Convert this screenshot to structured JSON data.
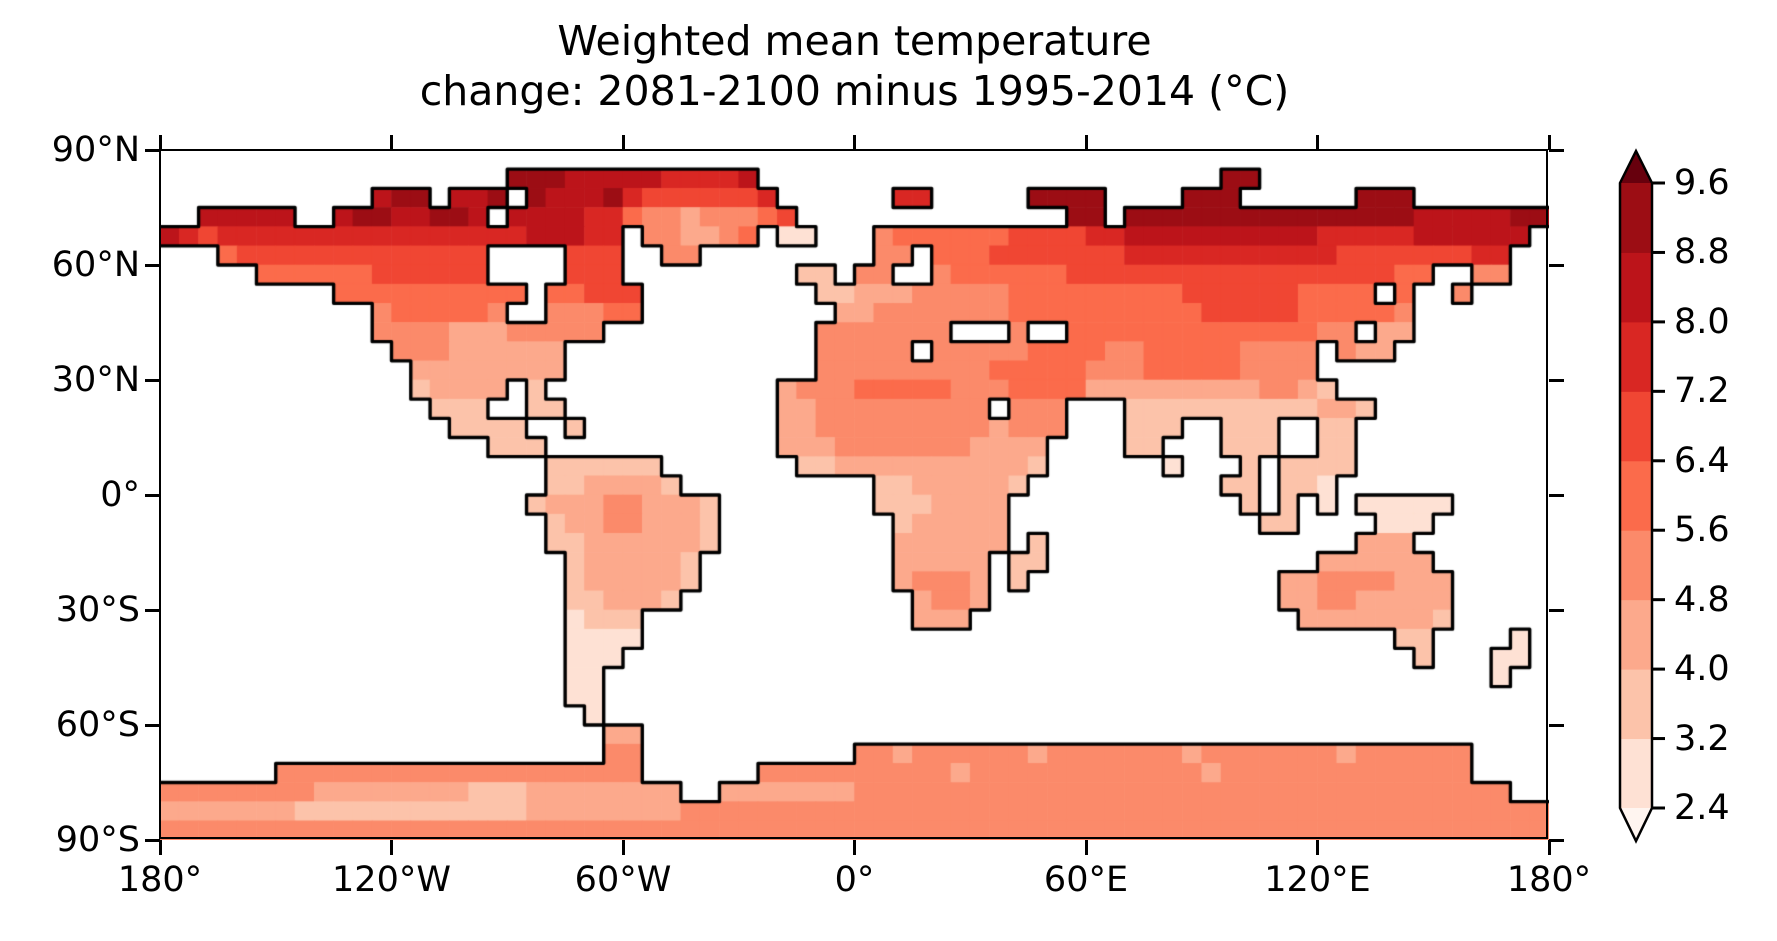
{
  "title": {
    "line1": "Weighted mean temperature",
    "line2": "change: 2081-2100 minus 1995-2014 (°C)"
  },
  "axes": {
    "x_ticks": [
      {
        "label": "180°",
        "lon": -180
      },
      {
        "label": "120°W",
        "lon": -120
      },
      {
        "label": "60°W",
        "lon": -60
      },
      {
        "label": "0°",
        "lon": 0
      },
      {
        "label": "60°E",
        "lon": 60
      },
      {
        "label": "120°E",
        "lon": 120
      },
      {
        "label": "180°",
        "lon": 180
      }
    ],
    "y_ticks": [
      {
        "label": "90°N",
        "lat": 90
      },
      {
        "label": "60°N",
        "lat": 60
      },
      {
        "label": "30°N",
        "lat": 30
      },
      {
        "label": "0°",
        "lat": 0
      },
      {
        "label": "30°S",
        "lat": -30
      },
      {
        "label": "60°S",
        "lat": -60
      },
      {
        "label": "90°S",
        "lat": -90
      }
    ]
  },
  "colorbar": {
    "tick_labels": [
      "9.6",
      "8.8",
      "8.0",
      "7.2",
      "6.4",
      "5.6",
      "4.8",
      "4.0",
      "3.2",
      "2.4"
    ],
    "boundaries": [
      2.4,
      3.2,
      4.0,
      4.8,
      5.6,
      6.4,
      7.2,
      8.0,
      8.8,
      9.6
    ],
    "segment_colors_low_to_high": [
      "#fee1d4",
      "#fcc3aa",
      "#fca98c",
      "#fb8a6a",
      "#fb6b4b",
      "#f04633",
      "#d92723",
      "#bc141a",
      "#9c0d14"
    ],
    "under_color": "#fff5f0",
    "over_color": "#67000d",
    "outline_color": "#000000",
    "extend": "both"
  },
  "chart_data": {
    "type": "heatmap",
    "title": "Weighted mean temperature change: 2081-2100 minus 1995-2014 (°C)",
    "units": "°C",
    "projection": "equirectangular (plate carree), world map, ocean masked white, coastlines black",
    "lon_range": [
      -180,
      180
    ],
    "lat_range": [
      -90,
      90
    ],
    "grid_cell_deg": 5,
    "value_bins_degC": [
      2.4,
      3.2,
      4.0,
      4.8,
      5.6,
      6.4,
      7.2,
      8.0,
      8.8,
      9.6
    ],
    "bin_char_meaning": {
      ".": "ocean / no data",
      "1": "2.4-3.2",
      "2": "3.2-4.0",
      "3": "4.0-4.8",
      "4": "4.8-5.6",
      "5": "5.6-6.4",
      "6": "6.4-7.2",
      "7": "7.2-8.0",
      "8": "8.0-8.8",
      "9": "8.8-9.6"
    },
    "palette": {
      "1": "#fee1d4",
      "2": "#fcc3aa",
      "3": "#fca98c",
      "4": "#fb8a6a",
      "5": "#fb6b4b",
      "6": "#f04633",
      "7": "#d92723",
      "8": "#bc141a",
      "9": "#9c0d14"
    },
    "pattern_summary": "Strong Arctic amplification (8-9.6+ over Arctic coasts and islands), 6-8 over subarctic Canada/Siberia, 4-6 mid-latitudes, 3-4.5 tropics, lightest (2.4-3.2) over Patagonia, New Zealand and New Guinea, 4-5.6 over Antarctica",
    "grid_rows": [
      "........................................................................",
      "..................9998888877778........................99..............",
      "...........899.889.9888976666667......77.....9999....999......999......",
      "..88888..89988998.888877544344456..............99.9999999999999998888899 99",
      "876777777777777777788877.443345.11...455555566667788888888887777788 8888",
      "...56666666666666....666..44.........44.5556666666777777777776666 66677",
      ".....555555666666....666.........22.44..4555555666666666666666 6655..44...",
      ".........5555555555.55666.........22333444445555555556666665555.5..4....",
      "...........4555554..44455..........334444444555555555566666555554.......",
      "...........444433344444...........44444 44...4..555555555555544.33.......",
      "............444333333.............44444.44444555544555554444.433........",
      ".............33333333.............4444444445555544455555444 4............",
      ".............23333.2............344455555444555533333333344 32...........",
      "..............222..22...........33444444444.444...2222222222332.........",
      "...............22 22..2..........3344444444434 44...222..222..22..........",
      ".................222............3334444444333 3....22...222..22..........",
      "....................222222.......223333333333 2......1...2.2222..........",
      "....................2233332..........22333332..........22.221..........",
      "...................2333443332........2223333............2.2.1.11111.....",
      "....................233443332.........233333.............22....111......",
      "....................223333332.........333333.2................333.......",
      ".....................2333332..........33333.22..............333333......",
      ".....................2333332..........34443.2.............334444333.....",
      ".....................223332............3443...............334433333.....",
      ".....................1222..............333.................33333332.....",
      ".....................1111.......................................22....1.",
      ".....................111.........................................2...11.",
      ".....................11..............................................1..",
      ".....................11................................................",
      "......................1................................................",
      ".......................33...............................................",
      ".......................44...........44344444434444444344444443444444....",
      "......4444444444444444444......4444444444344444444444434444444444444....",
      "4444444433333333222333333 33..33333334444444444444444444444444444444444",
      "333333322222222222233333333444444444444444444444444444444444444444444444",
      "444444444444444444444444444444444444444444444444444444444444444444444444"
    ]
  },
  "style": {
    "background": "#ffffff",
    "ocean_color": "#ffffff",
    "coastline_color": "#000000",
    "axis_color": "#000000",
    "text_color": "#000000"
  }
}
